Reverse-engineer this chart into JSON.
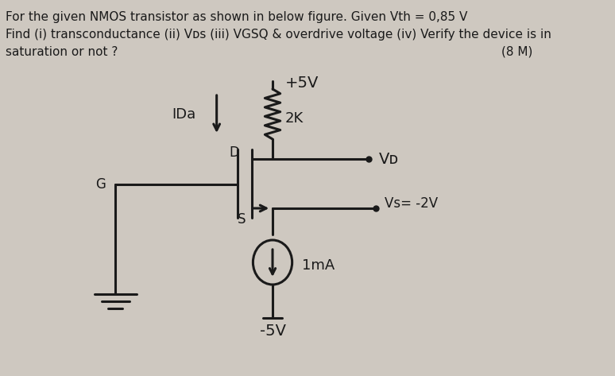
{
  "bg_color": "#cec8c0",
  "text_color": "#1a1a1a",
  "title_line1": "For the given NMOS transistor as shown in below figure. Given Vth = 0,85 V",
  "title_line2": "Find (i) transconductance (ii) Vᴅs (iii) VGSQ & overdrive voltage (iv) Verify the device is in",
  "title_line3": "saturation or not ?",
  "marks": "(8 M)",
  "vdd": "+5V",
  "vss": "-5V",
  "vs_label": "Vs= -2V",
  "vd_label": "Vᴅ",
  "rd_label": "2K",
  "id_label": "IDa",
  "is_label": "1mA",
  "gate_label": "G",
  "drain_label": "D",
  "source_label": "S",
  "figw": 7.74,
  "figh": 4.73,
  "dpi": 100
}
